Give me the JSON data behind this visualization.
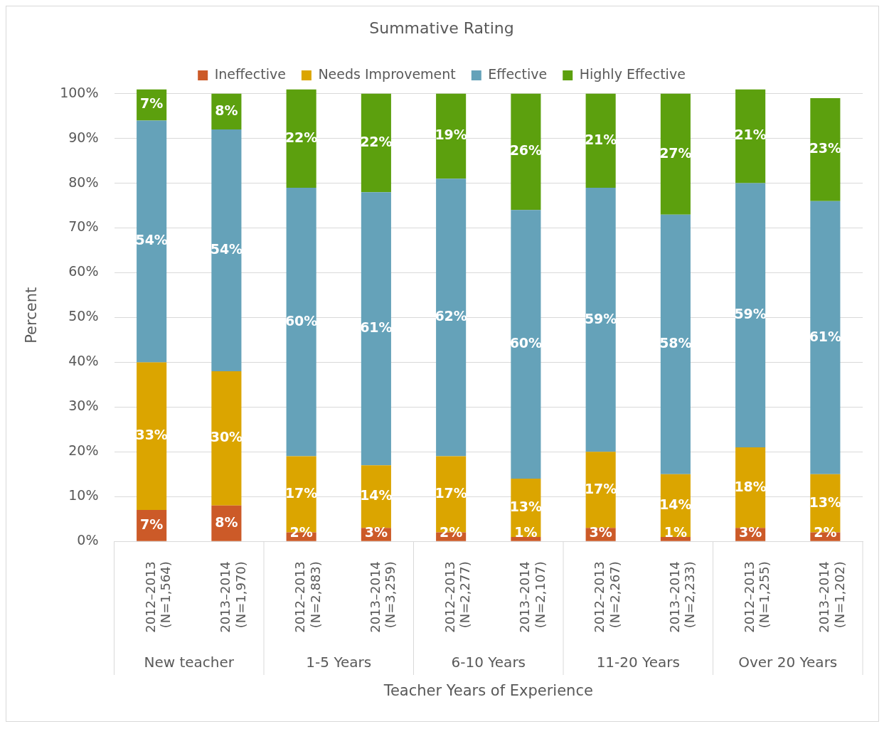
{
  "chart_data": {
    "type": "bar",
    "title": "Summative Rating",
    "xlabel": "Teacher Years of Experience",
    "ylabel": "Percent",
    "stacked": true,
    "legend": "top",
    "grid": "y",
    "categories": [
      "2012–2013 (N=1,564)",
      "2013–2014 (N=1,970)",
      "2012–2013 (N=2,883)",
      "2013–2014 (N=3,259)",
      "2012–2013 (N=2,277)",
      "2013–2014 (N=2,107)",
      "2012–2013 (N=2,267)",
      "2013–2014 (N=2,233)",
      "2012–2013 (N=1,255)",
      "2013–2014 (N=1,202)"
    ],
    "annotations": [
      "New teacher",
      "1-5 Years",
      "6-10 Years",
      "11-20 Years",
      "Over 20 Years"
    ],
    "ylim": [
      0,
      101
    ],
    "yticks": [
      {
        "value": 0,
        "label": "0%"
      },
      {
        "value": 10,
        "label": "10%"
      },
      {
        "value": 20,
        "label": "20%"
      },
      {
        "value": 30,
        "label": "30%"
      },
      {
        "value": 40,
        "label": "40%"
      },
      {
        "value": 50,
        "label": "50%"
      },
      {
        "value": 60,
        "label": "60%"
      },
      {
        "value": 70,
        "label": "70%"
      },
      {
        "value": 80,
        "label": "80%"
      },
      {
        "value": 90,
        "label": "90%"
      },
      {
        "value": 100,
        "label": "100%"
      }
    ],
    "series": [
      {
        "name": "Ineffective",
        "color": "#cc5a28",
        "values": [
          7,
          8,
          2,
          3,
          2,
          1,
          3,
          1,
          3,
          2
        ],
        "value_labels": [
          "7%",
          "8%",
          "2%",
          "3%",
          "2%",
          "1%",
          "3%",
          "1%",
          "3%",
          "2%"
        ]
      },
      {
        "name": "Needs Improvement",
        "color": "#dba500",
        "values": [
          33,
          30,
          17,
          14,
          17,
          13,
          17,
          14,
          18,
          13
        ],
        "value_labels": [
          "33%",
          "30%",
          "17%",
          "14%",
          "17%",
          "13%",
          "17%",
          "14%",
          "18%",
          "13%"
        ]
      },
      {
        "name": "Effective",
        "color": "#65a2b9",
        "values": [
          54,
          54,
          60,
          61,
          62,
          60,
          59,
          58,
          59,
          61
        ],
        "value_labels": [
          "54%",
          "54%",
          "60%",
          "61%",
          "62%",
          "60%",
          "59%",
          "58%",
          "59%",
          "61%"
        ]
      },
      {
        "name": "Highly Effective",
        "color": "#5ca00e",
        "values": [
          7,
          8,
          22,
          22,
          19,
          26,
          21,
          27,
          21,
          23
        ],
        "value_labels": [
          "7%",
          "8%",
          "22%",
          "22%",
          "19%",
          "26%",
          "21%",
          "27%",
          "21%",
          "23%"
        ]
      }
    ]
  }
}
